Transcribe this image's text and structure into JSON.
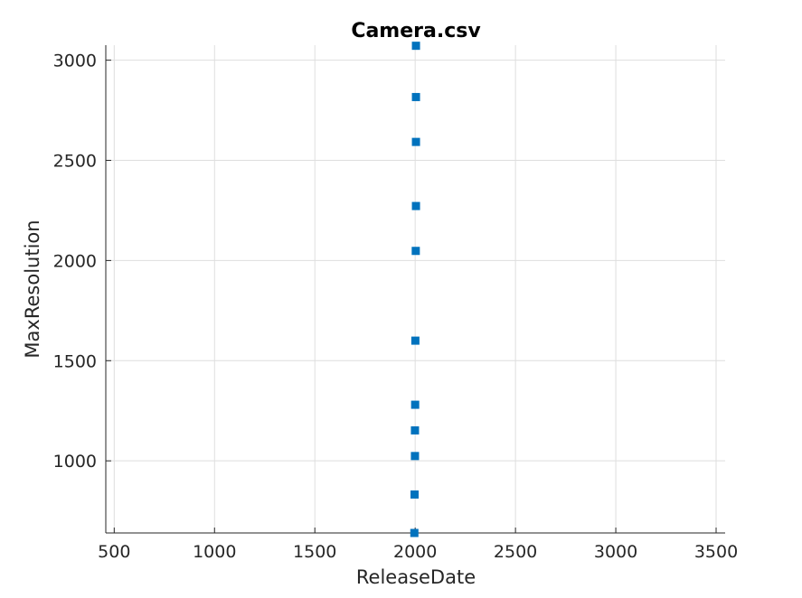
{
  "chart_data": {
    "type": "scatter",
    "title": "Camera.csv",
    "xlabel": "ReleaseDate",
    "ylabel": "MaxResolution",
    "xlim": [
      458,
      3545
    ],
    "ylim": [
      640,
      3075
    ],
    "xticks": [
      500,
      1000,
      1500,
      2000,
      2500,
      3000,
      3500
    ],
    "yticks": [
      1000,
      1500,
      2000,
      2500,
      3000
    ],
    "grid": true,
    "marker": "square",
    "color": "#0072BD",
    "points": [
      {
        "x": 2004,
        "y": 3072
      },
      {
        "x": 2004,
        "y": 2816
      },
      {
        "x": 2004,
        "y": 2592
      },
      {
        "x": 2004,
        "y": 2272
      },
      {
        "x": 2003,
        "y": 2048
      },
      {
        "x": 2001,
        "y": 1600
      },
      {
        "x": 2000,
        "y": 1280
      },
      {
        "x": 1999,
        "y": 1152
      },
      {
        "x": 1999,
        "y": 1024
      },
      {
        "x": 1997,
        "y": 832
      },
      {
        "x": 1996,
        "y": 640
      }
    ]
  }
}
